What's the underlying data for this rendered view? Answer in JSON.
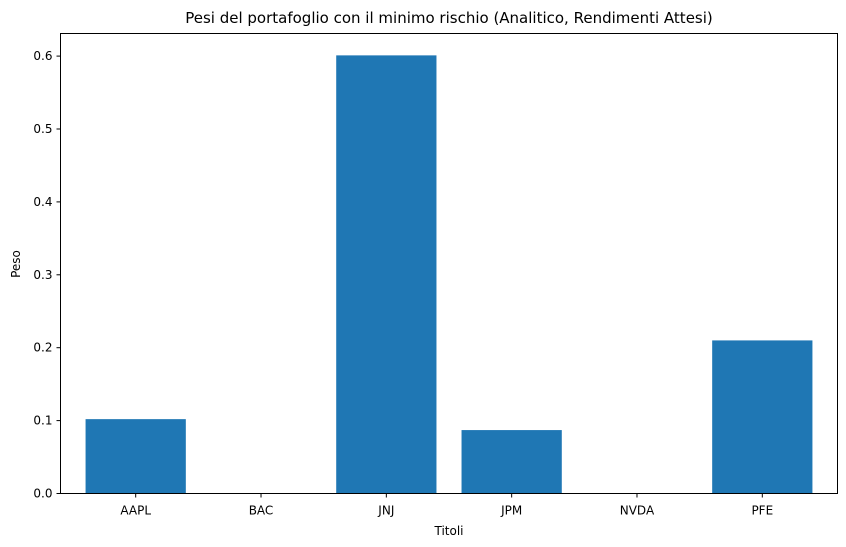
{
  "chart_data": {
    "type": "bar",
    "title": "Pesi del portafoglio con il minimo rischio (Analitico, Rendimenti Attesi)",
    "xlabel": "Titoli",
    "ylabel": "Peso",
    "categories": [
      "AAPL",
      "BAC",
      "JNJ",
      "JPM",
      "NVDA",
      "PFE"
    ],
    "values": [
      0.102,
      0.0,
      0.601,
      0.087,
      0.0,
      0.21
    ],
    "ylim": [
      0,
      0.631
    ],
    "yticks": [
      0.0,
      0.1,
      0.2,
      0.3,
      0.4,
      0.5,
      0.6
    ],
    "ytick_labels": [
      "0.0",
      "0.1",
      "0.2",
      "0.3",
      "0.4",
      "0.5",
      "0.6"
    ],
    "grid": false,
    "bar_color": "#1f77b4"
  }
}
